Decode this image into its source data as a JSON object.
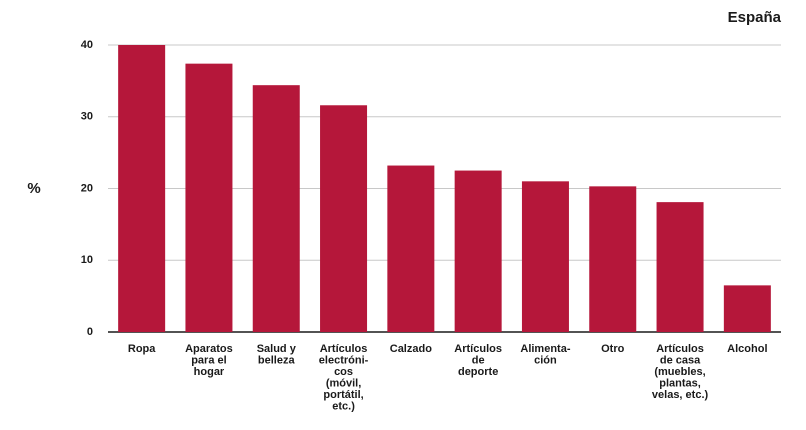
{
  "chart_data": {
    "type": "bar",
    "title": "España",
    "ylabel": "%",
    "xlabel": "",
    "ylim": [
      0,
      40
    ],
    "yticks": [
      0,
      10,
      20,
      30,
      40
    ],
    "grid": true,
    "bar_color": "#b5173a",
    "grid_color": "#c8c8c8",
    "categories": [
      "Ropa",
      "Aparatos para el hogar",
      "Salud y belleza",
      "Artículos electróni-cos (móvil, portátil, etc.)",
      "Calzado",
      "Artículos de deporte",
      "Alimenta-ción",
      "Otro",
      "Artículos de casa (muebles, plantas, velas, etc.)",
      "Alcohol"
    ],
    "category_lines": [
      [
        "Ropa"
      ],
      [
        "Aparatos",
        "para el",
        "hogar"
      ],
      [
        "Salud y",
        "belleza"
      ],
      [
        "Artículos",
        "electróni-",
        "cos",
        "(móvil,",
        "portátil,",
        "etc.)"
      ],
      [
        "Calzado"
      ],
      [
        "Artículos",
        "de",
        "deporte"
      ],
      [
        "Alimenta-",
        "ción"
      ],
      [
        "Otro"
      ],
      [
        "Artículos",
        "de casa",
        "(muebles,",
        "plantas,",
        "velas, etc.)"
      ],
      [
        "Alcohol"
      ]
    ],
    "values": [
      40,
      37.4,
      34.4,
      31.6,
      23.2,
      22.5,
      21,
      20.3,
      18.1,
      6.5
    ]
  }
}
